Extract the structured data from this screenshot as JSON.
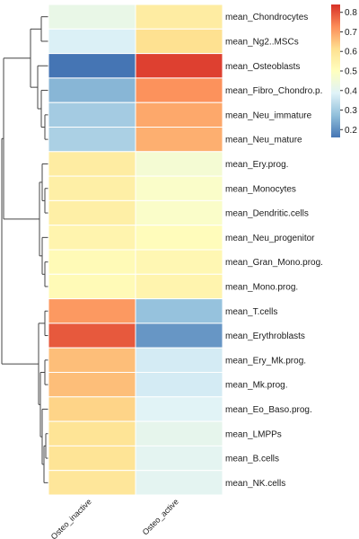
{
  "chart_data": {
    "type": "heatmap",
    "rows": [
      "mean_Chondrocytes",
      "mean_Ng2..MSCs",
      "mean_Osteoblasts",
      "mean_Fibro_Chondro.p.",
      "mean_Neu_immature",
      "mean_Neu_mature",
      "mean_Ery.prog.",
      "mean_Monocytes",
      "mean_Dendritic.cells",
      "mean_Neu_progenitor",
      "mean_Gran_Mono.prog.",
      "mean_Mono.prog.",
      "mean_T.cells",
      "mean_Erythroblasts",
      "mean_Ery_Mk.prog.",
      "mean_Mk.prog.",
      "mean_Eo_Baso.prog.",
      "mean_LMPPs",
      "mean_B.cells",
      "mean_NK.cells"
    ],
    "columns": [
      "Osteo_inactive",
      "Osteo_active"
    ],
    "values": [
      [
        0.42,
        0.57
      ],
      [
        0.38,
        0.61
      ],
      [
        0.16,
        0.82
      ],
      [
        0.26,
        0.72
      ],
      [
        0.3,
        0.69
      ],
      [
        0.31,
        0.68
      ],
      [
        0.57,
        0.46
      ],
      [
        0.56,
        0.48
      ],
      [
        0.56,
        0.48
      ],
      [
        0.54,
        0.51
      ],
      [
        0.52,
        0.53
      ],
      [
        0.52,
        0.54
      ],
      [
        0.71,
        0.28
      ],
      [
        0.79,
        0.21
      ],
      [
        0.66,
        0.37
      ],
      [
        0.66,
        0.37
      ],
      [
        0.63,
        0.39
      ],
      [
        0.6,
        0.41
      ],
      [
        0.6,
        0.4
      ],
      [
        0.59,
        0.4
      ]
    ],
    "colorbar": {
      "ticks": [
        0.2,
        0.3,
        0.4,
        0.5,
        0.6,
        0.7,
        0.8
      ],
      "range": [
        0.16,
        0.84
      ],
      "colors": [
        "#4575b4",
        "#91bfdb",
        "#e0f3f8",
        "#ffffbf",
        "#fee090",
        "#fc8d59",
        "#d73027"
      ]
    },
    "row_dendrogram": true,
    "cell_border_color": "#ffffff"
  }
}
